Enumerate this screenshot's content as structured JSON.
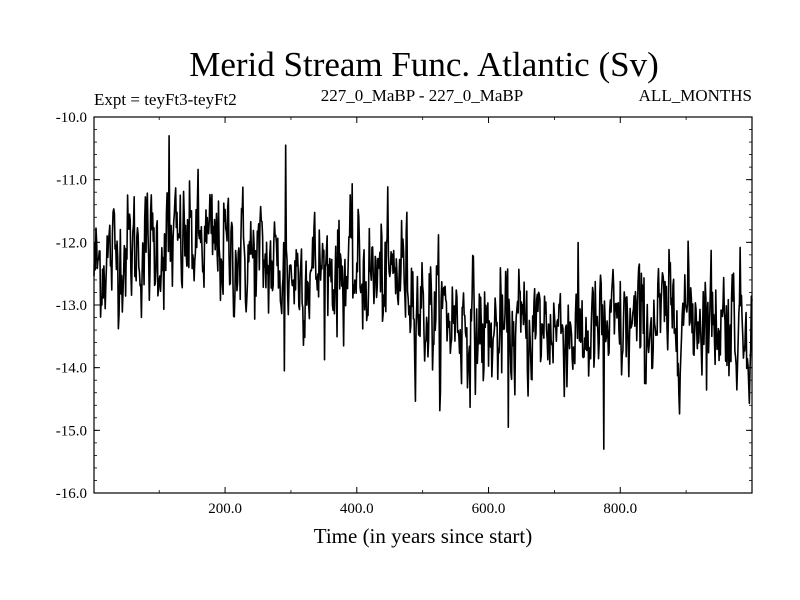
{
  "chart_data": {
    "type": "line",
    "title": "Merid Stream Func. Atlantic (Sv)",
    "subtitle_left": "Expt = teyFt3-teyFt2",
    "subtitle_center": "227_0_MaBP - 227_0_MaBP",
    "subtitle_right": "ALL_MONTHS",
    "xlabel": "Time (in years since start)",
    "ylabel": "",
    "xlim": [
      1,
      1000
    ],
    "ylim": [
      -16.0,
      -10.0
    ],
    "xticks": [
      200,
      400,
      600,
      800
    ],
    "xtick_labels": [
      "200.0",
      "400.0",
      "600.0",
      "800.0"
    ],
    "yticks": [
      -10,
      -11,
      -12,
      -13,
      -14,
      -15,
      -16
    ],
    "ytick_labels": [
      "-10.0",
      "-11.0",
      "-12.0",
      "-13.0",
      "-14.0",
      "-15.0",
      "-16.0"
    ],
    "grid": false,
    "legend": "none",
    "series": [
      {
        "name": "Merid Stream Func. Atlantic",
        "color": "#000000",
        "note": "Annual noisy series, 1000 points; values in anchors with noise amplitude below",
        "anchors_x": [
          1,
          50,
          100,
          150,
          200,
          250,
          300,
          350,
          400,
          450,
          470,
          500,
          550,
          600,
          650,
          700,
          750,
          800,
          850,
          900,
          950,
          1000
        ],
        "anchors_mean": [
          -12.4,
          -12.1,
          -12.1,
          -12.0,
          -12.1,
          -12.3,
          -12.5,
          -12.4,
          -12.5,
          -12.6,
          -12.4,
          -13.1,
          -13.2,
          -13.5,
          -13.4,
          -13.3,
          -13.5,
          -13.4,
          -13.3,
          -13.1,
          -13.2,
          -13.3
        ],
        "noise_amplitude": 0.45,
        "extremes": [
          {
            "x": 115,
            "y": -10.3
          },
          {
            "x": 292,
            "y": -10.45
          },
          {
            "x": 775,
            "y": -15.3
          },
          {
            "x": 630,
            "y": -14.95
          },
          {
            "x": 290,
            "y": -14.05
          }
        ]
      }
    ]
  }
}
